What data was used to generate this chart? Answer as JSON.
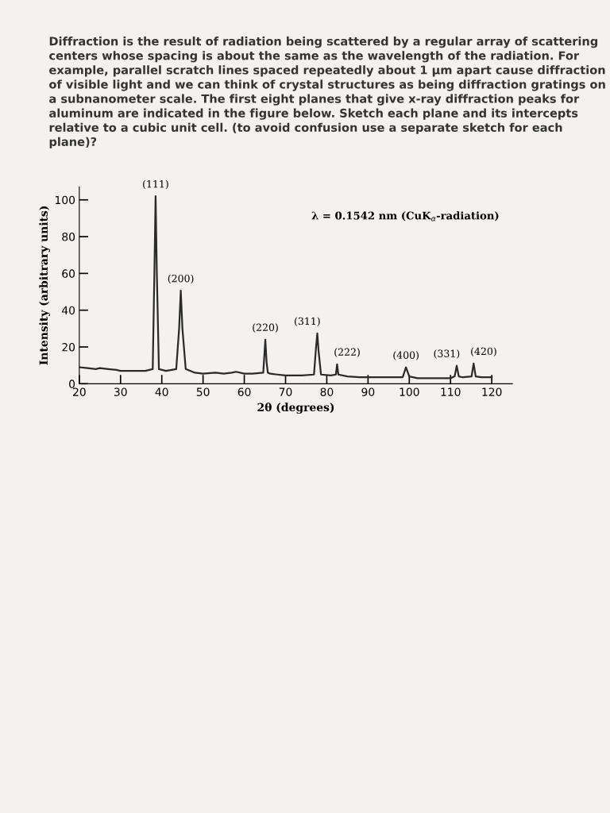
{
  "chart_data": {
    "type": "line",
    "title": "Diffraction is the result of radiation being scattered by a regular array of scattering centers whose spacing is about the same as the wavelength of the radiation. For example, parallel scratch lines spaced repeatedly about 1 µm apart cause diffraction of visible light and we can think of crystal structures as being diffraction gratings on a subnanometer scale. The first eight planes that give x-ray diffraction peaks for aluminum are indicated in the figure below. Sketch each plane and its intercepts relative to a cubic unit cell. (to avoid confusion use a separate sketch for each plane)?",
    "xlabel": "2θ (degrees)",
    "ylabel": "Intensity (arbitrary units)",
    "series": [
      {
        "color": "#2a2a2a",
        "x": [
          20,
          22,
          24,
          25,
          27,
          29,
          30,
          33,
          36,
          37.8,
          38.2,
          38.5,
          38.8,
          39.3,
          41,
          43.5,
          44.2,
          44.6,
          45,
          45.8,
          48,
          50,
          53,
          55,
          57,
          58,
          60,
          62,
          64.6,
          65.1,
          65.4,
          65.7,
          66.3,
          68,
          70,
          74,
          76.9,
          77.4,
          77.7,
          78,
          78.6,
          81,
          82.2,
          82.5,
          82.8,
          85,
          88,
          90,
          94,
          98.4,
          99.2,
          100,
          102,
          106,
          110,
          111,
          111.5,
          112,
          113,
          115.1,
          115.6,
          116.1,
          117.5,
          119,
          120
        ],
        "values": [
          9,
          8.5,
          8,
          8.5,
          8,
          7.5,
          7,
          7,
          7,
          8,
          60,
          102,
          60,
          8,
          7,
          8,
          30,
          50.6,
          30,
          8,
          6,
          5.5,
          6,
          5.5,
          6,
          6.5,
          5.5,
          5.5,
          6,
          24,
          12,
          6,
          5.5,
          5,
          4.5,
          4.5,
          5,
          20,
          27.4,
          18,
          5,
          4.5,
          5,
          10.6,
          5,
          4,
          3.5,
          3.5,
          3.5,
          3.5,
          8.9,
          4,
          3,
          3,
          3,
          4,
          9.8,
          4,
          3.5,
          4,
          11,
          4,
          3.5,
          3.5,
          3.5
        ]
      }
    ],
    "xlim": [
      20,
      125
    ],
    "ylim": [
      0,
      107
    ],
    "xticks": [
      20,
      30,
      40,
      50,
      60,
      70,
      80,
      90,
      100,
      110,
      120
    ],
    "yticks": [
      0,
      20,
      40,
      60,
      80,
      100
    ],
    "grid": false,
    "legend": false,
    "annotations": [
      {
        "text": "(111)",
        "x": 38.5,
        "y": 102
      },
      {
        "text": "(200)",
        "x": 44.6,
        "y": 50.6
      },
      {
        "text": "(220)",
        "x": 65.1,
        "y": 24
      },
      {
        "text": "(311)",
        "x": 77.7,
        "y": 27.4
      },
      {
        "text": "(222)",
        "x": 82.5,
        "y": 10.6
      },
      {
        "text": "(400)",
        "x": 99.2,
        "y": 8.9
      },
      {
        "text": "(331)",
        "x": 111.5,
        "y": 9.8
      },
      {
        "text": "(420)",
        "x": 115.6,
        "y": 11
      },
      "λ = 0.1542 nm (CuK$_{α}$-radiation)"
    ]
  }
}
